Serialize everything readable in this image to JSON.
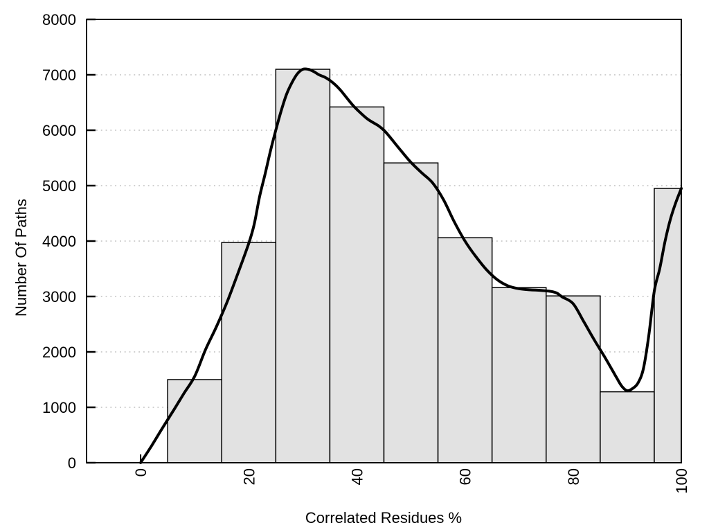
{
  "chart_data": {
    "type": "bar",
    "subtype": "histogram-with-smoothed-curve",
    "title": "",
    "xlabel": "Correlated Residues %",
    "ylabel": "Number Of Paths",
    "xlim": [
      -10,
      100
    ],
    "ylim": [
      0,
      8000
    ],
    "xticks": [
      0,
      20,
      40,
      60,
      80,
      100
    ],
    "yticks": [
      0,
      1000,
      2000,
      3000,
      4000,
      5000,
      6000,
      7000,
      8000
    ],
    "grid": {
      "horizontal": true,
      "style": "dotted",
      "levels": [
        1000,
        2000,
        3000,
        4000,
        5000,
        6000,
        7000
      ]
    },
    "legend": null,
    "bars": [
      {
        "x0": 5,
        "x1": 15,
        "value": 1500
      },
      {
        "x0": 15,
        "x1": 25,
        "value": 3975
      },
      {
        "x0": 25,
        "x1": 35,
        "value": 7100
      },
      {
        "x0": 35,
        "x1": 45,
        "value": 6420
      },
      {
        "x0": 45,
        "x1": 55,
        "value": 5410
      },
      {
        "x0": 55,
        "x1": 65,
        "value": 4060
      },
      {
        "x0": 65,
        "x1": 75,
        "value": 3160
      },
      {
        "x0": 75,
        "x1": 85,
        "value": 3010
      },
      {
        "x0": 85,
        "x1": 95,
        "value": 1280
      },
      {
        "x0": 95,
        "x1": 100,
        "value": 4950
      }
    ],
    "curve": {
      "name": "smoothed-path-frequency-curve",
      "points": [
        [
          0,
          0
        ],
        [
          2,
          300
        ],
        [
          4,
          620
        ],
        [
          6,
          930
        ],
        [
          8,
          1250
        ],
        [
          10,
          1560
        ],
        [
          12,
          2040
        ],
        [
          14,
          2450
        ],
        [
          16,
          2900
        ],
        [
          18,
          3420
        ],
        [
          20,
          3960
        ],
        [
          21,
          4300
        ],
        [
          22,
          4800
        ],
        [
          23,
          5200
        ],
        [
          24,
          5620
        ],
        [
          25,
          6000
        ],
        [
          26,
          6350
        ],
        [
          27,
          6650
        ],
        [
          28,
          6860
        ],
        [
          29,
          7020
        ],
        [
          30,
          7100
        ],
        [
          31,
          7100
        ],
        [
          32,
          7060
        ],
        [
          33,
          7000
        ],
        [
          34,
          6960
        ],
        [
          35,
          6900
        ],
        [
          36,
          6820
        ],
        [
          37,
          6720
        ],
        [
          38,
          6600
        ],
        [
          39,
          6480
        ],
        [
          40,
          6375
        ],
        [
          42,
          6200
        ],
        [
          44,
          6080
        ],
        [
          45,
          6000
        ],
        [
          46,
          5890
        ],
        [
          48,
          5650
        ],
        [
          50,
          5420
        ],
        [
          52,
          5230
        ],
        [
          54,
          5050
        ],
        [
          56,
          4750
        ],
        [
          58,
          4350
        ],
        [
          60,
          4000
        ],
        [
          62,
          3720
        ],
        [
          64,
          3480
        ],
        [
          66,
          3300
        ],
        [
          68,
          3190
        ],
        [
          70,
          3140
        ],
        [
          72,
          3120
        ],
        [
          74,
          3110
        ],
        [
          76,
          3090
        ],
        [
          77,
          3060
        ],
        [
          78,
          2990
        ],
        [
          80,
          2870
        ],
        [
          82,
          2540
        ],
        [
          84,
          2200
        ],
        [
          86,
          1880
        ],
        [
          88,
          1540
        ],
        [
          89,
          1380
        ],
        [
          90,
          1300
        ],
        [
          91,
          1340
        ],
        [
          92,
          1440
        ],
        [
          93,
          1700
        ],
        [
          94,
          2300
        ],
        [
          95,
          3100
        ],
        [
          96,
          3500
        ],
        [
          97,
          4000
        ],
        [
          98,
          4400
        ],
        [
          99,
          4700
        ],
        [
          100,
          4950
        ]
      ]
    },
    "colors": {
      "background": "#ffffff",
      "bar_fill": "#e2e2e2",
      "bar_stroke": "#000000",
      "curve": "#000000",
      "grid": "#bfbfbf",
      "axis": "#000000",
      "text": "#000000"
    }
  }
}
